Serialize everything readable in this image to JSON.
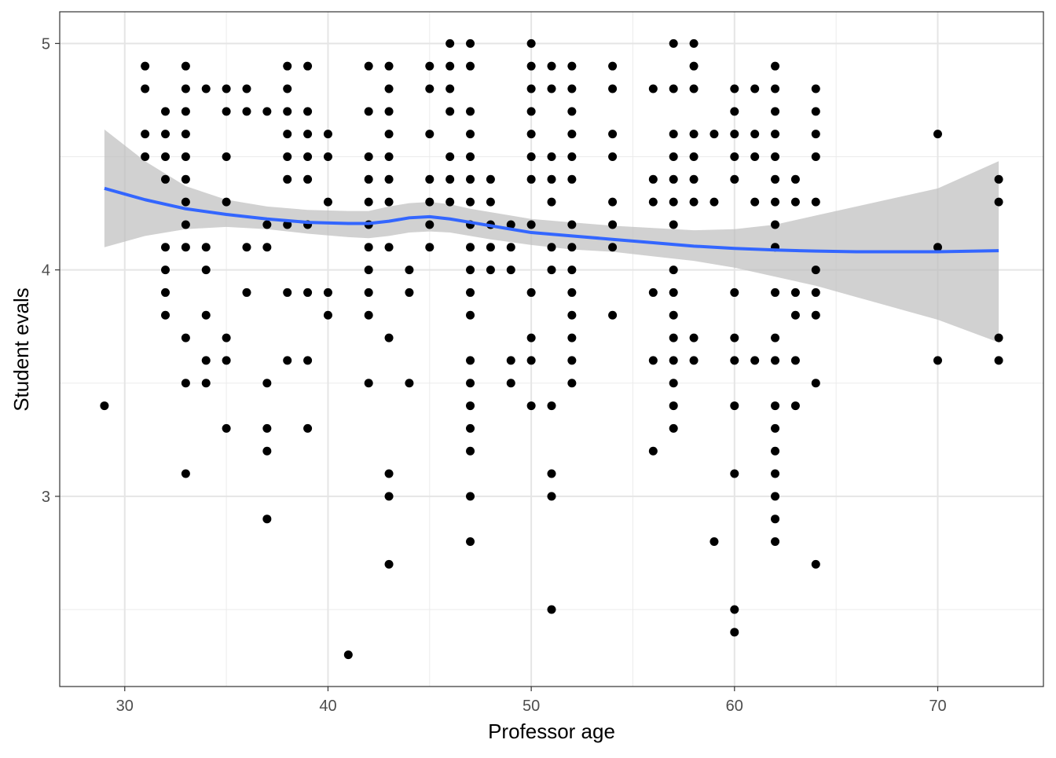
{
  "chart_data": {
    "type": "scatter",
    "title": "",
    "xlabel": "Professor age",
    "ylabel": "Student evals",
    "xlim": [
      26.8,
      75.2
    ],
    "ylim": [
      2.16,
      5.14
    ],
    "x_ticks": [
      30,
      40,
      50,
      60,
      70
    ],
    "x_tick_labels": [
      "30",
      "40",
      "50",
      "60",
      "70"
    ],
    "y_ticks": [
      3,
      4,
      5
    ],
    "y_tick_labels": [
      "3",
      "4",
      "5"
    ],
    "grid": true,
    "legend": "none",
    "points_by_age": {
      "29": [
        3.4
      ],
      "31": [
        4.9,
        4.8,
        4.6,
        4.5
      ],
      "32": [
        4.7,
        4.6,
        4.5,
        4.4,
        4.1,
        4.0,
        3.9,
        3.8
      ],
      "33": [
        4.9,
        4.8,
        4.7,
        4.6,
        4.5,
        4.4,
        4.3,
        4.2,
        4.1,
        3.7,
        3.5,
        3.1
      ],
      "34": [
        4.8,
        4.1,
        4.0,
        3.8,
        3.6,
        3.5
      ],
      "35": [
        4.8,
        4.7,
        4.5,
        4.3,
        3.7,
        3.6,
        3.3
      ],
      "36": [
        4.8,
        4.7,
        4.1,
        3.9
      ],
      "37": [
        4.7,
        4.2,
        4.1,
        3.5,
        3.3,
        3.2,
        2.9
      ],
      "38": [
        4.9,
        4.8,
        4.7,
        4.6,
        4.5,
        4.4,
        4.2,
        3.9,
        3.6
      ],
      "39": [
        4.9,
        4.7,
        4.6,
        4.5,
        4.4,
        4.2,
        3.9,
        3.6,
        3.3
      ],
      "40": [
        4.6,
        4.5,
        4.3,
        3.9,
        3.8
      ],
      "41": [
        2.3
      ],
      "42": [
        4.9,
        4.7,
        4.5,
        4.4,
        4.3,
        4.2,
        4.1,
        4.0,
        3.9,
        3.8,
        3.5
      ],
      "43": [
        4.9,
        4.8,
        4.7,
        4.6,
        4.5,
        4.4,
        4.3,
        4.1,
        3.7,
        3.1,
        3.0,
        2.7
      ],
      "44": [
        4.0,
        3.9,
        3.5
      ],
      "45": [
        4.9,
        4.8,
        4.6,
        4.4,
        4.3,
        4.2,
        4.1
      ],
      "46": [
        5.0,
        4.9,
        4.8,
        4.7,
        4.5,
        4.4,
        4.3
      ],
      "47": [
        5.0,
        4.9,
        4.7,
        4.6,
        4.5,
        4.4,
        4.3,
        4.2,
        4.1,
        4.0,
        3.9,
        3.8,
        3.6,
        3.5,
        3.4,
        3.3,
        3.2,
        3.0,
        2.8
      ],
      "48": [
        4.4,
        4.3,
        4.2,
        4.1,
        4.0
      ],
      "49": [
        4.2,
        4.1,
        4.0,
        3.6,
        3.5
      ],
      "50": [
        5.0,
        4.9,
        4.8,
        4.7,
        4.6,
        4.5,
        4.4,
        4.2,
        3.9,
        3.7,
        3.6,
        3.4
      ],
      "51": [
        4.9,
        4.8,
        4.5,
        4.4,
        4.3,
        4.1,
        4.0,
        3.4,
        3.1,
        3.0,
        2.5
      ],
      "52": [
        4.9,
        4.8,
        4.7,
        4.6,
        4.5,
        4.4,
        4.2,
        4.1,
        4.0,
        3.9,
        3.8,
        3.7,
        3.6,
        3.5
      ],
      "54": [
        4.9,
        4.8,
        4.6,
        4.5,
        4.3,
        4.2,
        4.1,
        3.8
      ],
      "56": [
        4.8,
        4.4,
        4.3,
        3.9,
        3.6,
        3.2
      ],
      "57": [
        5.0,
        4.8,
        4.6,
        4.5,
        4.4,
        4.3,
        4.2,
        4.0,
        3.9,
        3.8,
        3.7,
        3.6,
        3.5,
        3.4,
        3.3
      ],
      "58": [
        5.0,
        4.9,
        4.8,
        4.6,
        4.5,
        4.4,
        4.3,
        3.7,
        3.6
      ],
      "59": [
        4.6,
        4.3,
        2.8
      ],
      "60": [
        4.8,
        4.7,
        4.6,
        4.5,
        4.4,
        3.9,
        3.7,
        3.6,
        3.4,
        3.1,
        2.5,
        2.4
      ],
      "61": [
        4.8,
        4.6,
        4.5,
        4.3,
        3.6
      ],
      "62": [
        4.9,
        4.8,
        4.7,
        4.6,
        4.5,
        4.4,
        4.3,
        4.2,
        4.1,
        3.9,
        3.7,
        3.6,
        3.4,
        3.3,
        3.2,
        3.1,
        3.0,
        2.9,
        2.8
      ],
      "63": [
        4.4,
        4.3,
        3.9,
        3.8,
        3.6,
        3.4
      ],
      "64": [
        4.8,
        4.7,
        4.6,
        4.5,
        4.3,
        4.0,
        3.9,
        3.8,
        3.5,
        2.7
      ],
      "70": [
        4.6,
        4.1,
        3.6
      ],
      "73": [
        4.4,
        4.3,
        3.7,
        3.6
      ]
    },
    "smooth": {
      "method": "loess",
      "color": "#3366FF",
      "band_color": "#BEBEBE",
      "x": [
        29,
        31,
        33,
        35,
        37,
        39,
        41,
        42,
        43,
        44,
        45,
        46,
        47,
        48,
        50,
        52,
        54,
        56,
        58,
        60,
        62,
        64,
        66,
        68,
        70,
        73
      ],
      "y": [
        4.36,
        4.31,
        4.27,
        4.245,
        4.225,
        4.21,
        4.205,
        4.205,
        4.215,
        4.23,
        4.235,
        4.225,
        4.21,
        4.195,
        4.165,
        4.15,
        4.135,
        4.12,
        4.105,
        4.095,
        4.088,
        4.083,
        4.08,
        4.08,
        4.08,
        4.085
      ],
      "lower": [
        4.1,
        4.15,
        4.18,
        4.19,
        4.18,
        4.16,
        4.145,
        4.14,
        4.15,
        4.165,
        4.17,
        4.165,
        4.15,
        4.135,
        4.11,
        4.09,
        4.08,
        4.06,
        4.04,
        4.01,
        3.97,
        3.93,
        3.88,
        3.83,
        3.78,
        3.68
      ],
      "upper": [
        4.62,
        4.48,
        4.37,
        4.31,
        4.28,
        4.265,
        4.26,
        4.26,
        4.28,
        4.295,
        4.3,
        4.29,
        4.27,
        4.255,
        4.225,
        4.21,
        4.195,
        4.185,
        4.175,
        4.18,
        4.2,
        4.24,
        4.28,
        4.32,
        4.36,
        4.48
      ]
    }
  }
}
